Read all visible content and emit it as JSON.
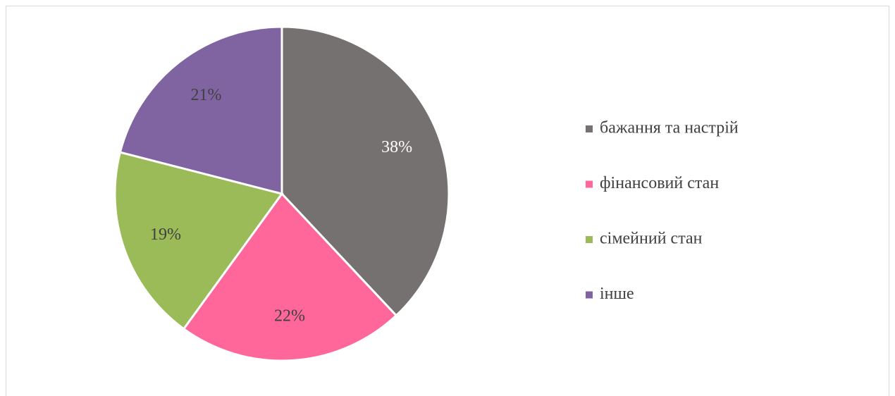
{
  "chart_data": {
    "type": "pie",
    "categories": [
      "бажання та настрій",
      "фінансовий стан",
      "сімейний стан",
      "інше"
    ],
    "values": [
      38,
      22,
      19,
      21
    ],
    "value_labels": [
      "38%",
      "22%",
      "19%",
      "21%"
    ],
    "colors": [
      "#767171",
      "#ff6699",
      "#9bbb59",
      "#8064a2"
    ],
    "legend": "right"
  }
}
